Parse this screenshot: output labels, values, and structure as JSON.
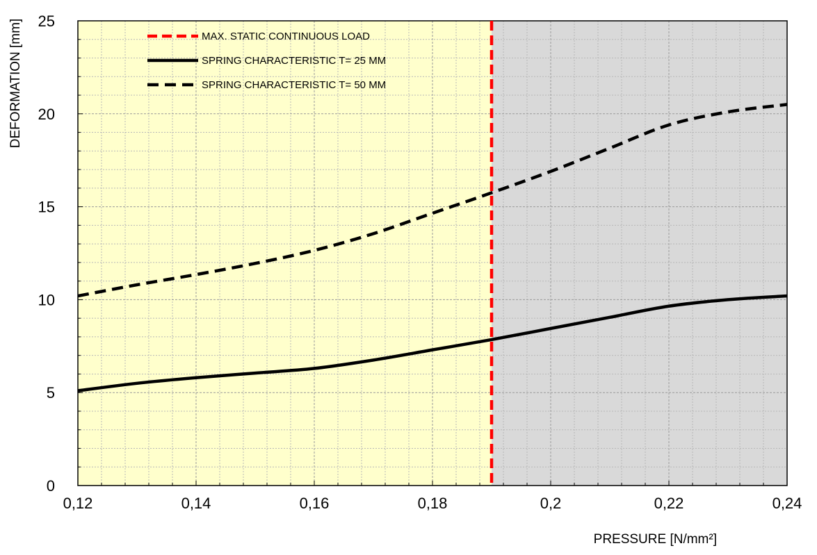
{
  "chart_data": {
    "type": "line",
    "title": "",
    "xlabel": "PRESSURE  [N/mm²]",
    "ylabel": "DEFORMATION [mm]",
    "xlim": [
      0.12,
      0.24
    ],
    "ylim": [
      0,
      25
    ],
    "x_ticks": [
      0.12,
      0.14,
      0.16,
      0.18,
      0.2,
      0.22,
      0.24
    ],
    "x_tick_labels": [
      "0,12",
      "0,14",
      "0,16",
      "0,18",
      "0,2",
      "0,22",
      "0,24"
    ],
    "y_ticks": [
      0,
      5,
      10,
      15,
      20,
      25
    ],
    "y_tick_labels": [
      "0",
      "5",
      "10",
      "15",
      "20",
      "25"
    ],
    "grid": true,
    "legend_position": "top-left",
    "shaded_regions": [
      {
        "x_from": 0.12,
        "x_to": 0.19,
        "color": "#ffffcc"
      },
      {
        "x_from": 0.19,
        "x_to": 0.24,
        "color": "#d9d9d9"
      }
    ],
    "vertical_lines": [
      {
        "name": "MAX. STATIC CONTINUOUS LOAD",
        "x": 0.19,
        "color": "#ff0000",
        "style": "dashed"
      }
    ],
    "series": [
      {
        "name": "SPRING CHARACTERISTIC T= 25 MM",
        "color": "#000000",
        "style": "solid",
        "x": [
          0.12,
          0.13,
          0.14,
          0.15,
          0.16,
          0.17,
          0.18,
          0.19,
          0.2,
          0.21,
          0.22,
          0.23,
          0.24
        ],
        "y": [
          5.1,
          5.5,
          5.8,
          6.05,
          6.3,
          6.75,
          7.3,
          7.85,
          8.45,
          9.05,
          9.65,
          10.0,
          10.2
        ]
      },
      {
        "name": "SPRING CHARACTERISTIC T= 50 MM",
        "color": "#000000",
        "style": "dashed",
        "x": [
          0.12,
          0.13,
          0.14,
          0.15,
          0.16,
          0.17,
          0.18,
          0.19,
          0.2,
          0.21,
          0.22,
          0.23,
          0.24
        ],
        "y": [
          10.2,
          10.8,
          11.35,
          11.95,
          12.65,
          13.55,
          14.65,
          15.75,
          16.9,
          18.15,
          19.4,
          20.1,
          20.5
        ]
      }
    ]
  }
}
